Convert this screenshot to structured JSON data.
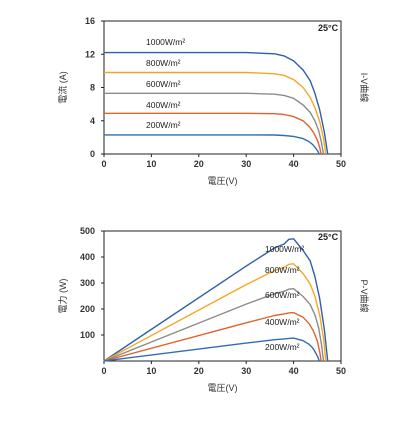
{
  "chart_data": [
    {
      "type": "line",
      "xlabel": "電圧(V)",
      "ylabel": "電流 (A)",
      "side_label": "I-V曲線",
      "temperature_label": "25°C",
      "xlim": [
        0,
        50
      ],
      "ylim": [
        0,
        16
      ],
      "x_ticks": [
        0,
        10,
        20,
        30,
        40,
        50
      ],
      "y_ticks": [
        0,
        4,
        8,
        12,
        16
      ],
      "grid": false,
      "series": [
        {
          "name": "1000W/m²",
          "color": "#2f5fa8",
          "x": [
            0,
            30,
            36,
            38,
            40,
            42,
            43.5,
            44.5,
            45.5,
            46.5,
            47.2
          ],
          "y": [
            12.2,
            12.2,
            12.05,
            11.8,
            11.2,
            10.1,
            8.8,
            7.3,
            5.3,
            2.6,
            0
          ]
        },
        {
          "name": "800W/m²",
          "color": "#f5a623",
          "x": [
            0,
            30,
            36,
            38,
            40,
            42,
            43.5,
            44.5,
            45.5,
            46.3,
            46.8
          ],
          "y": [
            9.8,
            9.8,
            9.65,
            9.45,
            8.95,
            8.0,
            6.8,
            5.6,
            3.9,
            1.9,
            0
          ]
        },
        {
          "name": "600W/m²",
          "color": "#8c8c8c",
          "x": [
            0,
            30,
            36,
            38,
            40,
            42,
            43.5,
            44.5,
            45.3,
            45.9,
            46.3
          ],
          "y": [
            7.3,
            7.3,
            7.2,
            7.05,
            6.7,
            5.9,
            5.0,
            4.0,
            2.8,
            1.3,
            0
          ]
        },
        {
          "name": "400W/m²",
          "color": "#e0632a",
          "x": [
            0,
            30,
            36,
            38,
            40,
            42,
            43.3,
            44.2,
            45.0,
            45.5,
            45.8
          ],
          "y": [
            4.9,
            4.9,
            4.85,
            4.75,
            4.5,
            4.0,
            3.3,
            2.6,
            1.7,
            0.8,
            0
          ]
        },
        {
          "name": "200W/m²",
          "color": "#2f6db5",
          "x": [
            0,
            30,
            36,
            38,
            40,
            42,
            43.2,
            44.0,
            44.6,
            45.1,
            45.4
          ],
          "y": [
            2.3,
            2.3,
            2.28,
            2.23,
            2.12,
            1.85,
            1.5,
            1.15,
            0.75,
            0.35,
            0
          ]
        }
      ]
    },
    {
      "type": "line",
      "xlabel": "電圧(V)",
      "ylabel": "電力 (W)",
      "side_label": "P-V曲線",
      "temperature_label": "25°C",
      "xlim": [
        0,
        50
      ],
      "ylim": [
        0,
        500
      ],
      "x_ticks": [
        0,
        10,
        20,
        30,
        40,
        50
      ],
      "y_ticks": [
        100,
        200,
        300,
        400,
        500
      ],
      "grid": false,
      "series": [
        {
          "name": "1000W/m²",
          "color": "#2f5fa8",
          "x": [
            0,
            30,
            36,
            38,
            39,
            40,
            42,
            43.5,
            44.5,
            45.5,
            46.5,
            47.2
          ],
          "y": [
            0,
            365,
            435,
            450,
            468,
            470,
            425,
            385,
            325,
            240,
            120,
            0
          ]
        },
        {
          "name": "800W/m²",
          "color": "#f5a623",
          "x": [
            0,
            30,
            36,
            38,
            39,
            40,
            42,
            43.5,
            44.5,
            45.5,
            46.3,
            46.8
          ],
          "y": [
            0,
            294,
            348,
            360,
            372,
            374,
            336,
            296,
            249,
            177,
            88,
            0
          ]
        },
        {
          "name": "600W/m²",
          "color": "#8c8c8c",
          "x": [
            0,
            30,
            36,
            38,
            39,
            40,
            42,
            43.5,
            44.5,
            45.3,
            45.9,
            46.3
          ],
          "y": [
            0,
            219,
            259,
            268,
            276,
            278,
            248,
            217,
            178,
            127,
            60,
            0
          ]
        },
        {
          "name": "400W/m²",
          "color": "#e0632a",
          "x": [
            0,
            30,
            36,
            38,
            39,
            40,
            42,
            43.3,
            44.2,
            45.0,
            45.5,
            45.8
          ],
          "y": [
            0,
            147,
            175,
            181,
            185,
            186,
            168,
            143,
            115,
            77,
            36,
            0
          ]
        },
        {
          "name": "200W/m²",
          "color": "#2f6db5",
          "x": [
            0,
            30,
            36,
            38,
            39,
            40,
            42,
            43.2,
            44.0,
            44.6,
            45.1,
            45.4
          ],
          "y": [
            0,
            69,
            82,
            85,
            87,
            88,
            78,
            65,
            51,
            33,
            16,
            0
          ]
        }
      ]
    }
  ]
}
